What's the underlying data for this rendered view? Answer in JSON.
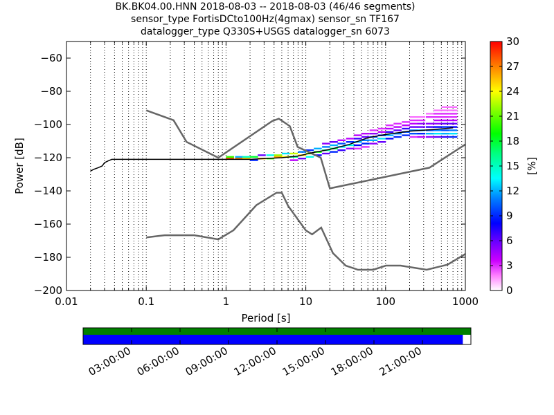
{
  "title_lines": [
    "BK.BK04.00.HNN   2018-08-03 -- 2018-08-03  (46/46 segments)",
    "sensor_type FortisDCto100Hz(4gmax) sensor_sn TF167",
    "datalogger_type Q330S+USGS datalogger_sn 6073"
  ],
  "chart_data": [
    {
      "type": "heatmap",
      "title": "BK.BK04.00.HNN   2018-08-03 -- 2018-08-03  (46/46 segments)",
      "xlabel": "Period [s]",
      "ylabel": "Power [dB]",
      "xscale": "log",
      "xlim": [
        0.01,
        1000
      ],
      "ylim": [
        -200,
        -50
      ],
      "xticks": [
        {
          "value": 0.01,
          "label": "0.01"
        },
        {
          "value": 0.1,
          "label": "0.1"
        },
        {
          "value": 1,
          "label": "1"
        },
        {
          "value": 10,
          "label": "10"
        },
        {
          "value": 100,
          "label": "100"
        },
        {
          "value": 1000,
          "label": "1000"
        }
      ],
      "yticks": [
        -200,
        -180,
        -160,
        -140,
        -120,
        -100,
        -80,
        -60
      ],
      "ytick_labels": [
        "−200",
        "−180",
        "−160",
        "−140",
        "−120",
        "−100",
        "−80",
        "−60"
      ],
      "grid": "dotted (x only)",
      "colorbar": {
        "label": "[%]",
        "range": [
          0,
          30
        ],
        "ticks": [
          0,
          3,
          6,
          9,
          12,
          15,
          18,
          21,
          24,
          27,
          30
        ]
      },
      "noise_models": {
        "high": [
          [
            0.1,
            -91.5
          ],
          [
            0.22,
            -97.4
          ],
          [
            0.32,
            -110.5
          ],
          [
            0.8,
            -120.0
          ],
          [
            3.8,
            -97.9
          ],
          [
            4.6,
            -96.5
          ],
          [
            6.3,
            -101.0
          ],
          [
            7.9,
            -113.5
          ],
          [
            15.4,
            -120.0
          ],
          [
            20.0,
            -138.5
          ],
          [
            354.8,
            -126.0
          ],
          [
            1000,
            -112.0
          ]
        ],
        "low": [
          [
            0.1,
            -168.0
          ],
          [
            0.17,
            -166.7
          ],
          [
            0.4,
            -166.7
          ],
          [
            0.8,
            -169.2
          ],
          [
            1.24,
            -163.7
          ],
          [
            2.4,
            -148.6
          ],
          [
            4.3,
            -141.1
          ],
          [
            5.0,
            -141.1
          ],
          [
            6.0,
            -149.0
          ],
          [
            10.0,
            -163.8
          ],
          [
            12.0,
            -166.2
          ],
          [
            15.6,
            -162.1
          ],
          [
            21.9,
            -177.5
          ],
          [
            31.6,
            -185.0
          ],
          [
            45.0,
            -187.5
          ],
          [
            70.0,
            -187.5
          ],
          [
            101.0,
            -185.0
          ],
          [
            154.0,
            -185.0
          ],
          [
            328.0,
            -187.5
          ],
          [
            600.0,
            -184.4
          ],
          [
            1000.0,
            -178.0
          ]
        ]
      },
      "mode_curve": [
        [
          0.02,
          -128
        ],
        [
          0.022,
          -127
        ],
        [
          0.025,
          -126
        ],
        [
          0.028,
          -125
        ],
        [
          0.03,
          -123
        ],
        [
          0.033,
          -122
        ],
        [
          0.037,
          -121
        ],
        [
          0.05,
          -121
        ],
        [
          0.1,
          -121
        ],
        [
          0.5,
          -121
        ],
        [
          1,
          -121
        ],
        [
          2,
          -121
        ],
        [
          3,
          -120.5
        ],
        [
          5,
          -120
        ],
        [
          8,
          -119
        ],
        [
          12,
          -117
        ],
        [
          20,
          -115
        ],
        [
          35,
          -112
        ],
        [
          60,
          -108
        ],
        [
          100,
          -106
        ],
        [
          200,
          -104
        ],
        [
          400,
          -103
        ],
        [
          700,
          -102
        ]
      ],
      "density_cells": [
        {
          "p": 1.0,
          "db": -120,
          "pct": 20
        },
        {
          "p": 1.0,
          "db": -121,
          "pct": 28
        },
        {
          "p": 1.3,
          "db": -120,
          "pct": 12
        },
        {
          "p": 1.3,
          "db": -121,
          "pct": 27
        },
        {
          "p": 1.6,
          "db": -120,
          "pct": 15
        },
        {
          "p": 1.6,
          "db": -121,
          "pct": 25
        },
        {
          "p": 2.0,
          "db": -120,
          "pct": 18
        },
        {
          "p": 2.0,
          "db": -122,
          "pct": 9
        },
        {
          "p": 2.5,
          "db": -119,
          "pct": 6
        },
        {
          "p": 2.5,
          "db": -121,
          "pct": 26
        },
        {
          "p": 3.2,
          "db": -119,
          "pct": 14
        },
        {
          "p": 3.2,
          "db": -121,
          "pct": 20
        },
        {
          "p": 4.0,
          "db": -119,
          "pct": 22
        },
        {
          "p": 4.0,
          "db": -120,
          "pct": 26
        },
        {
          "p": 5.0,
          "db": -118,
          "pct": 13
        },
        {
          "p": 5.0,
          "db": -120,
          "pct": 24
        },
        {
          "p": 6.3,
          "db": -118,
          "pct": 23
        },
        {
          "p": 6.3,
          "db": -120,
          "pct": 16
        },
        {
          "p": 6.3,
          "db": -122,
          "pct": 4
        },
        {
          "p": 8.0,
          "db": -117,
          "pct": 11
        },
        {
          "p": 8.0,
          "db": -119,
          "pct": 25
        },
        {
          "p": 8.0,
          "db": -121,
          "pct": 6
        },
        {
          "p": 10,
          "db": -116,
          "pct": 9
        },
        {
          "p": 10,
          "db": -118,
          "pct": 22
        },
        {
          "p": 10,
          "db": -120,
          "pct": 14
        },
        {
          "p": 12.6,
          "db": -115,
          "pct": 12
        },
        {
          "p": 12.6,
          "db": -117,
          "pct": 19
        },
        {
          "p": 12.6,
          "db": -119,
          "pct": 8
        },
        {
          "p": 16,
          "db": -112,
          "pct": 5
        },
        {
          "p": 16,
          "db": -114,
          "pct": 11
        },
        {
          "p": 16,
          "db": -116,
          "pct": 16
        },
        {
          "p": 16,
          "db": -118,
          "pct": 6
        },
        {
          "p": 20,
          "db": -111,
          "pct": 6
        },
        {
          "p": 20,
          "db": -113,
          "pct": 12
        },
        {
          "p": 20,
          "db": -115,
          "pct": 17
        },
        {
          "p": 20,
          "db": -117,
          "pct": 9
        },
        {
          "p": 25,
          "db": -110,
          "pct": 4
        },
        {
          "p": 25,
          "db": -112,
          "pct": 10
        },
        {
          "p": 25,
          "db": -114,
          "pct": 13
        },
        {
          "p": 25,
          "db": -116,
          "pct": 7
        },
        {
          "p": 32,
          "db": -109,
          "pct": 4
        },
        {
          "p": 32,
          "db": -111,
          "pct": 9
        },
        {
          "p": 32,
          "db": -113,
          "pct": 14
        },
        {
          "p": 32,
          "db": -115,
          "pct": 5
        },
        {
          "p": 40,
          "db": -107,
          "pct": 4
        },
        {
          "p": 40,
          "db": -109,
          "pct": 7
        },
        {
          "p": 40,
          "db": -111,
          "pct": 12
        },
        {
          "p": 40,
          "db": -113,
          "pct": 8
        },
        {
          "p": 40,
          "db": -115,
          "pct": 3
        },
        {
          "p": 50,
          "db": -106,
          "pct": 4
        },
        {
          "p": 50,
          "db": -108,
          "pct": 6
        },
        {
          "p": 50,
          "db": -110,
          "pct": 11
        },
        {
          "p": 50,
          "db": -112,
          "pct": 9
        },
        {
          "p": 50,
          "db": -114,
          "pct": 3
        },
        {
          "p": 63,
          "db": -104,
          "pct": 3
        },
        {
          "p": 63,
          "db": -106,
          "pct": 5
        },
        {
          "p": 63,
          "db": -108,
          "pct": 10
        },
        {
          "p": 63,
          "db": -110,
          "pct": 12
        },
        {
          "p": 63,
          "db": -112,
          "pct": 5
        },
        {
          "p": 80,
          "db": -103,
          "pct": 3
        },
        {
          "p": 80,
          "db": -105,
          "pct": 4
        },
        {
          "p": 80,
          "db": -107,
          "pct": 9
        },
        {
          "p": 80,
          "db": -109,
          "pct": 13
        },
        {
          "p": 80,
          "db": -111,
          "pct": 6
        },
        {
          "p": 100,
          "db": -101,
          "pct": 3
        },
        {
          "p": 100,
          "db": -103,
          "pct": 4
        },
        {
          "p": 100,
          "db": -105,
          "pct": 7
        },
        {
          "p": 100,
          "db": -107,
          "pct": 12
        },
        {
          "p": 100,
          "db": -109,
          "pct": 8
        },
        {
          "p": 126,
          "db": -100,
          "pct": 3
        },
        {
          "p": 126,
          "db": -102,
          "pct": 4
        },
        {
          "p": 126,
          "db": -104,
          "pct": 6
        },
        {
          "p": 126,
          "db": -106,
          "pct": 11
        },
        {
          "p": 126,
          "db": -108,
          "pct": 9
        },
        {
          "p": 160,
          "db": -99,
          "pct": 3
        },
        {
          "p": 160,
          "db": -101,
          "pct": 4
        },
        {
          "p": 160,
          "db": -103,
          "pct": 7
        },
        {
          "p": 160,
          "db": -105,
          "pct": 10
        },
        {
          "p": 160,
          "db": -107,
          "pct": 9
        },
        {
          "p": 200,
          "db": -96,
          "pct": 2
        },
        {
          "p": 200,
          "db": -98,
          "pct": 3
        },
        {
          "p": 200,
          "db": -100,
          "pct": 4
        },
        {
          "p": 200,
          "db": -102,
          "pct": 6
        },
        {
          "p": 200,
          "db": -104,
          "pct": 11
        },
        {
          "p": 200,
          "db": -106,
          "pct": 10
        },
        {
          "p": 200,
          "db": -108,
          "pct": 3
        },
        {
          "p": 250,
          "db": -96,
          "pct": 2
        },
        {
          "p": 250,
          "db": -98,
          "pct": 3
        },
        {
          "p": 250,
          "db": -100,
          "pct": 5
        },
        {
          "p": 250,
          "db": -102,
          "pct": 6
        },
        {
          "p": 250,
          "db": -104,
          "pct": 12
        },
        {
          "p": 250,
          "db": -106,
          "pct": 9
        },
        {
          "p": 250,
          "db": -108,
          "pct": 4
        },
        {
          "p": 320,
          "db": -94,
          "pct": 2
        },
        {
          "p": 320,
          "db": -96,
          "pct": 3
        },
        {
          "p": 320,
          "db": -100,
          "pct": 5
        },
        {
          "p": 320,
          "db": -102,
          "pct": 7
        },
        {
          "p": 320,
          "db": -104,
          "pct": 10
        },
        {
          "p": 320,
          "db": -106,
          "pct": 12
        },
        {
          "p": 320,
          "db": -108,
          "pct": 5
        },
        {
          "p": 400,
          "db": -92,
          "pct": 2
        },
        {
          "p": 400,
          "db": -94,
          "pct": 3
        },
        {
          "p": 400,
          "db": -96,
          "pct": 3
        },
        {
          "p": 400,
          "db": -98,
          "pct": 4
        },
        {
          "p": 400,
          "db": -100,
          "pct": 5
        },
        {
          "p": 400,
          "db": -102,
          "pct": 8
        },
        {
          "p": 400,
          "db": -104,
          "pct": 11
        },
        {
          "p": 400,
          "db": -106,
          "pct": 13
        },
        {
          "p": 400,
          "db": -108,
          "pct": 6
        },
        {
          "p": 500,
          "db": -90,
          "pct": 2
        },
        {
          "p": 500,
          "db": -92,
          "pct": 2
        },
        {
          "p": 500,
          "db": -94,
          "pct": 3
        },
        {
          "p": 500,
          "db": -96,
          "pct": 3
        },
        {
          "p": 500,
          "db": -98,
          "pct": 4
        },
        {
          "p": 500,
          "db": -100,
          "pct": 6
        },
        {
          "p": 500,
          "db": -102,
          "pct": 9
        },
        {
          "p": 500,
          "db": -104,
          "pct": 10
        },
        {
          "p": 500,
          "db": -106,
          "pct": 12
        },
        {
          "p": 500,
          "db": -108,
          "pct": 7
        },
        {
          "p": 630,
          "db": -90,
          "pct": 2
        },
        {
          "p": 630,
          "db": -92,
          "pct": 2
        },
        {
          "p": 630,
          "db": -94,
          "pct": 3
        },
        {
          "p": 630,
          "db": -96,
          "pct": 3
        },
        {
          "p": 630,
          "db": -98,
          "pct": 4
        },
        {
          "p": 630,
          "db": -100,
          "pct": 6
        },
        {
          "p": 630,
          "db": -102,
          "pct": 8
        },
        {
          "p": 630,
          "db": -104,
          "pct": 11
        },
        {
          "p": 630,
          "db": -106,
          "pct": 13
        },
        {
          "p": 630,
          "db": -108,
          "pct": 9
        }
      ]
    },
    {
      "type": "timeline",
      "xticks": [
        "03:00:00",
        "06:00:00",
        "09:00:00",
        "12:00:00",
        "15:00:00",
        "18:00:00",
        "21:00:00"
      ],
      "xlim_hours": [
        0,
        24
      ],
      "segments": {
        "start_hours": 0,
        "end_hours": 23.5,
        "color": "#0000ff"
      },
      "availability": {
        "start_hours": 0,
        "end_hours": 24,
        "color": "#008000"
      }
    }
  ]
}
